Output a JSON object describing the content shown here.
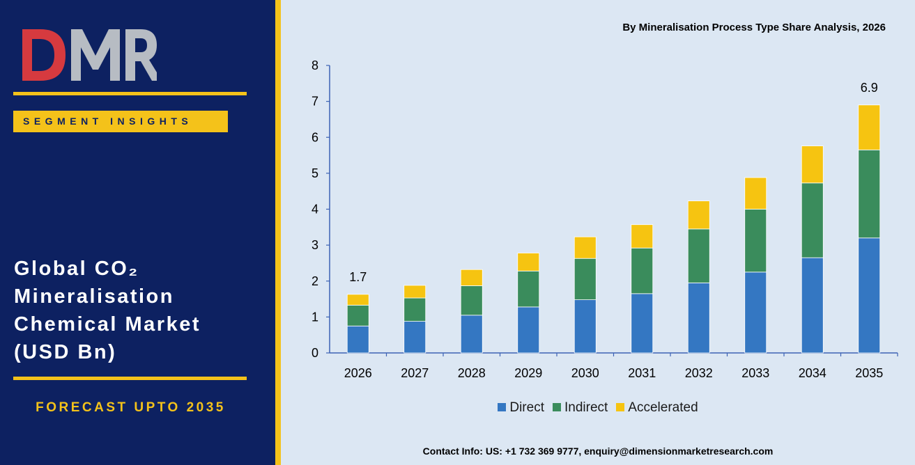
{
  "brand": {
    "logo_text": "DMR",
    "badge": "SEGMENT INSIGHTS"
  },
  "report": {
    "title": "Global CO₂\nMineralisation\nChemical Market\n(USD Bn)",
    "forecast": "FORECAST UPTO 2035",
    "contact": "Contact Info: US: +1 732 369 9777, enquiry@dimensionmarketresearch.com"
  },
  "colors": {
    "panel": "#0d2161",
    "accent": "#f4c21a",
    "direct": "#3477c2",
    "indirect": "#3a8c5c",
    "accelerated": "#f6c411"
  },
  "chart_data": {
    "type": "bar",
    "stacked": true,
    "title": "By Mineralisation Process Type Share Analysis, 2026",
    "categories": [
      "2026",
      "2027",
      "2028",
      "2029",
      "2030",
      "2031",
      "2032",
      "2033",
      "2034",
      "2035"
    ],
    "series": [
      {
        "name": "Direct",
        "color": "#3477c2",
        "values": [
          0.75,
          0.88,
          1.05,
          1.28,
          1.48,
          1.65,
          1.95,
          2.25,
          2.65,
          3.2
        ]
      },
      {
        "name": "Indirect",
        "color": "#3a8c5c",
        "values": [
          0.58,
          0.65,
          0.82,
          1.0,
          1.15,
          1.27,
          1.5,
          1.75,
          2.08,
          2.45
        ]
      },
      {
        "name": "Accelerated",
        "color": "#f6c411",
        "values": [
          0.3,
          0.35,
          0.45,
          0.5,
          0.6,
          0.65,
          0.78,
          0.88,
          1.03,
          1.25
        ]
      }
    ],
    "data_labels": [
      {
        "category": "2026",
        "text": "1.7"
      },
      {
        "category": "2035",
        "text": "6.9"
      }
    ],
    "ylim": [
      0,
      8
    ],
    "yticks": [
      0,
      1,
      2,
      3,
      4,
      5,
      6,
      7,
      8
    ],
    "xlabel": "",
    "ylabel": "",
    "grid": false,
    "legend_position": "bottom"
  }
}
